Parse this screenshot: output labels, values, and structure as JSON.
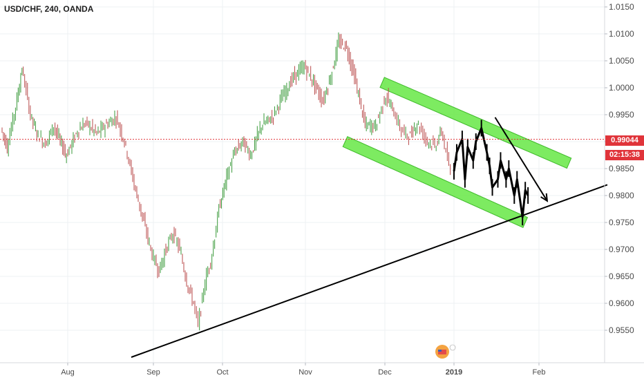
{
  "symbol_title": "USD/CHF, 240, OANDA",
  "price_label": "0.99044",
  "countdown_label": "02:15:38",
  "colors": {
    "up": "#3a9a3a",
    "down": "#b84a4a",
    "channel": "#66e845",
    "channel_edge": "#3fba2a",
    "trendline": "#000000",
    "price_line": "#e0343a",
    "grid": "#eef0f3",
    "axis_text": "#4a4a4a"
  },
  "chart_data": {
    "type": "line",
    "title": "USD/CHF, 240, OANDA",
    "xlabel": "",
    "ylabel": "",
    "grid": true,
    "ylim": [
      0.9505,
      1.0155
    ],
    "y_ticks": [
      "1.0150",
      "1.0100",
      "1.0050",
      "1.0000",
      "0.9950",
      "0.9900",
      "0.9850",
      "0.9800",
      "0.9750",
      "0.9700",
      "0.9650",
      "0.9600",
      "0.9550"
    ],
    "x_labels": [
      "Aug",
      "Sep",
      "Oct",
      "Nov",
      "Dec",
      "2019",
      "Feb"
    ],
    "current_price": 0.99044,
    "series": [
      {
        "x": [
          "2018-07-01",
          "2018-07-04",
          "2018-07-08",
          "2018-07-11",
          "2018-07-15",
          "2018-07-18",
          "2018-07-22",
          "2018-07-26",
          "2018-07-29",
          "2018-08-01",
          "2018-08-05",
          "2018-08-08",
          "2018-08-12",
          "2018-08-15",
          "2018-08-19",
          "2018-08-22",
          "2018-08-26",
          "2018-08-29",
          "2018-09-01",
          "2018-09-04",
          "2018-09-07",
          "2018-09-10",
          "2018-09-13",
          "2018-09-16",
          "2018-09-19",
          "2018-09-21",
          "2018-09-24",
          "2018-09-27",
          "2018-09-30",
          "2018-10-03",
          "2018-10-06",
          "2018-10-09",
          "2018-10-12",
          "2018-10-16",
          "2018-10-20",
          "2018-10-24",
          "2018-10-28",
          "2018-11-01",
          "2018-11-04",
          "2018-11-08",
          "2018-11-11",
          "2018-11-14",
          "2018-11-17",
          "2018-11-20",
          "2018-11-24",
          "2018-11-28",
          "2018-12-02",
          "2018-12-05",
          "2018-12-09",
          "2018-12-13",
          "2018-12-16",
          "2018-12-20",
          "2018-12-24",
          "2018-12-27",
          "2018-12-31"
        ],
        "values": [
          0.9925,
          0.989,
          0.9965,
          1.0035,
          0.995,
          0.9915,
          0.9895,
          0.993,
          0.99,
          0.9875,
          0.992,
          0.9935,
          0.9915,
          0.993,
          0.9945,
          0.99,
          0.981,
          0.975,
          0.969,
          0.966,
          0.97,
          0.973,
          0.97,
          0.964,
          0.96,
          0.956,
          0.964,
          0.969,
          0.9775,
          0.9835,
          0.988,
          0.99,
          0.9875,
          0.993,
          0.9945,
          0.9985,
          1.002,
          1.004,
          1.0015,
          0.9975,
          1.002,
          1.0085,
          1.0075,
          1.002,
          0.993,
          0.993,
          0.9985,
          0.996,
          0.992,
          0.991,
          0.9935,
          0.9905,
          0.989,
          0.992,
          0.984
        ]
      },
      {
        "name": "drawn path",
        "x": [
          "2019-01-01",
          "2019-01-02",
          "2019-01-04",
          "2019-01-05",
          "2019-01-06",
          "2019-01-08",
          "2019-01-09",
          "2019-01-11",
          "2019-01-13",
          "2019-01-14",
          "2019-01-15",
          "2019-01-17",
          "2019-01-18",
          "2019-01-20",
          "2019-01-21",
          "2019-01-23",
          "2019-01-24",
          "2019-01-26",
          "2019-01-27",
          "2019-01-28"
        ],
        "values": [
          0.9845,
          0.988,
          0.9905,
          0.983,
          0.989,
          0.9865,
          0.99,
          0.9925,
          0.988,
          0.9855,
          0.9815,
          0.983,
          0.9865,
          0.983,
          0.985,
          0.98,
          0.983,
          0.976,
          0.981,
          0.98
        ]
      }
    ],
    "annotations": [
      {
        "type": "trendline",
        "from": [
          "2018-08-24",
          0.95
        ],
        "to": [
          "2019-02-26",
          0.982
        ]
      },
      {
        "type": "channel-upper",
        "from": [
          "2018-11-30",
          1.001
        ],
        "to": [
          "2019-02-12",
          0.986
        ]
      },
      {
        "type": "channel-lower",
        "from": [
          "2018-11-16",
          0.99
        ],
        "to": [
          "2019-01-27",
          0.975
        ]
      },
      {
        "type": "arrow",
        "from": [
          "2019-01-16",
          0.9945
        ],
        "to": [
          "2019-02-04",
          0.979
        ]
      }
    ]
  }
}
